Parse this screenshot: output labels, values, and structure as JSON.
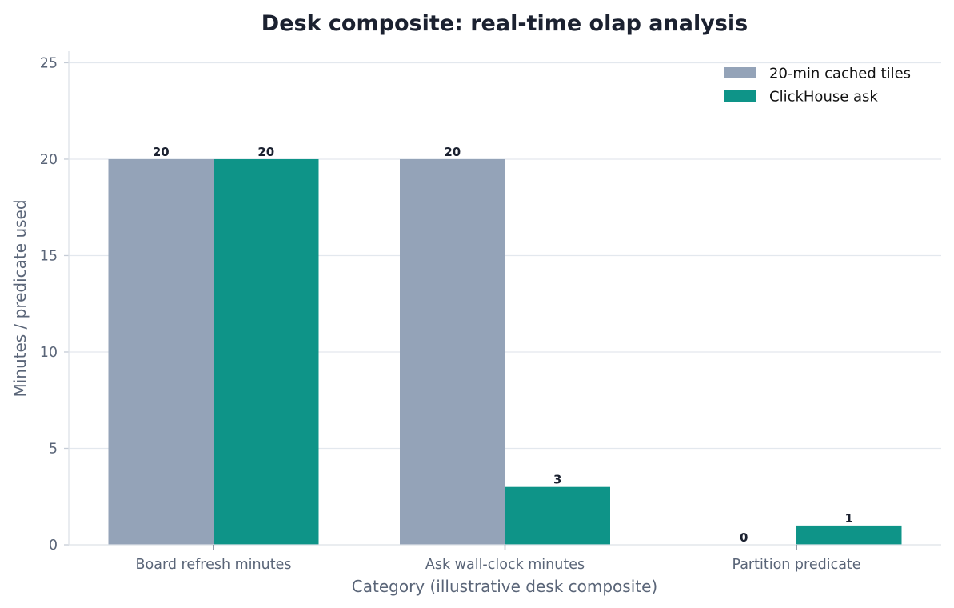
{
  "chart_data": {
    "type": "bar",
    "title": "Desk composite: real-time olap analysis",
    "xlabel": "Category (illustrative desk composite)",
    "ylabel": "Minutes / predicate used",
    "categories": [
      "Board refresh minutes",
      "Ask wall-clock minutes",
      "Partition predicate"
    ],
    "series": [
      {
        "name": "20-min cached tiles",
        "values": [
          20,
          20,
          0
        ],
        "color": "#94a3b8"
      },
      {
        "name": "ClickHouse ask",
        "values": [
          20,
          3,
          1
        ],
        "color": "#0e9488"
      }
    ],
    "ylim": [
      0,
      25.6
    ],
    "yticks": [
      0,
      5,
      10,
      15,
      20,
      25
    ],
    "grid": "horizontal",
    "legend_position": "top-right"
  }
}
